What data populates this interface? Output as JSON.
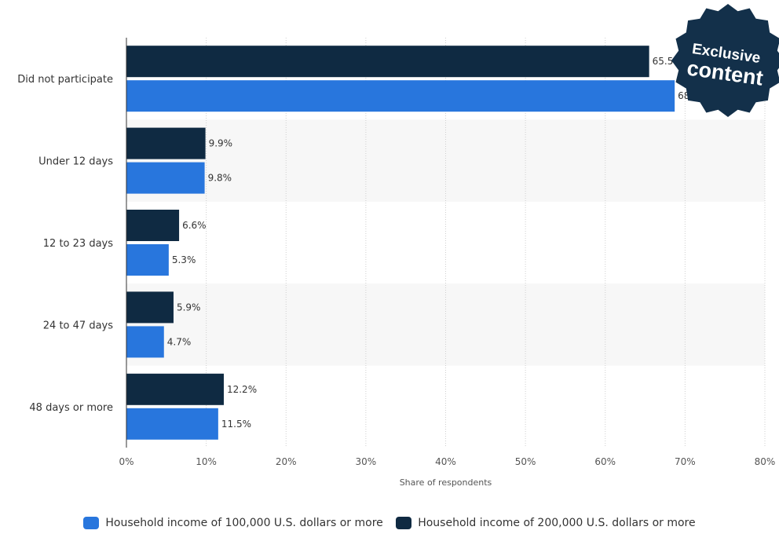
{
  "chart_data": {
    "type": "bar",
    "orientation": "horizontal",
    "categories": [
      "Did not participate",
      "Under 12 days",
      "12 to 23 days",
      "24 to 47 days",
      "48 days or more"
    ],
    "series": [
      {
        "name": "Household income of 200,000 U.S. dollars or more",
        "color": "#0f2a42",
        "values": [
          65.5,
          9.9,
          6.6,
          5.9,
          12.2
        ],
        "labels": [
          "65.5%",
          "9.9%",
          "6.6%",
          "5.9%",
          "12.2%"
        ]
      },
      {
        "name": "Household income of 100,000 U.S. dollars or more",
        "color": "#2876dd",
        "values": [
          68.7,
          9.8,
          5.3,
          4.7,
          11.5
        ],
        "labels": [
          "68.7%",
          "9.8%",
          "5.3%",
          "4.7%",
          "11.5%"
        ]
      }
    ],
    "xlim": [
      0,
      80
    ],
    "xticks": [
      "0%",
      "10%",
      "20%",
      "30%",
      "40%",
      "50%",
      "60%",
      "70%",
      "80%"
    ],
    "xlabel": "Share of respondents",
    "grid": true,
    "legend": {
      "placement": "bottom",
      "entries": [
        {
          "label": "Household income of 100,000 U.S. dollars or more",
          "color": "#2876dd"
        },
        {
          "label": "Household income of 200,000 U.S. dollars or more",
          "color": "#0f2a42"
        }
      ]
    }
  },
  "badge": {
    "line1": "Exclusive",
    "line2": "content",
    "color": "#13304a",
    "text_color": "#ffffff"
  }
}
